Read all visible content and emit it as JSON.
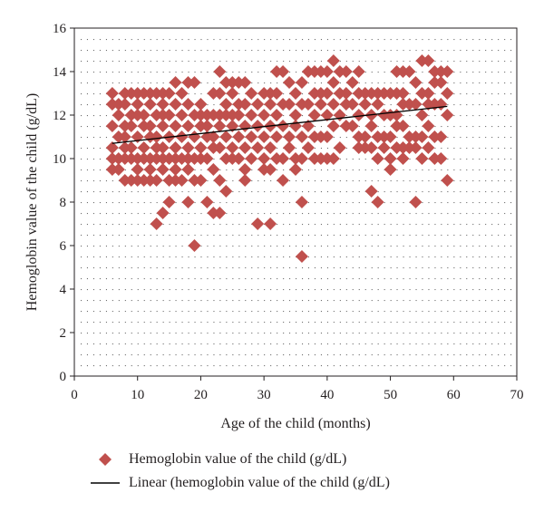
{
  "colors": {
    "marker": "#c0504d",
    "trend": "#000000",
    "grid_dots": "#6d6d6d",
    "axis": "#231f20"
  },
  "chart_data": {
    "type": "scatter",
    "title": "",
    "xlabel": "Age of the child (months)",
    "ylabel": "Hemoglobin value of the child (g/dL)",
    "xlim": [
      0,
      70
    ],
    "ylim": [
      0,
      16
    ],
    "xticks": [
      "0",
      "10",
      "20",
      "30",
      "40",
      "50",
      "60",
      "70"
    ],
    "yticks": [
      "0",
      "2",
      "4",
      "6",
      "8",
      "10",
      "12",
      "14",
      "16"
    ],
    "legend_position": "bottom",
    "series": [
      {
        "name": "Hemoglobin value of the child (g/dL)",
        "marker": "diamond",
        "points": [
          [
            6,
            13
          ],
          [
            6,
            12.5
          ],
          [
            6,
            11.5
          ],
          [
            6,
            10.5
          ],
          [
            6,
            10
          ],
          [
            6,
            9.5
          ],
          [
            7,
            12.5
          ],
          [
            7,
            12
          ],
          [
            7,
            11
          ],
          [
            7,
            10
          ],
          [
            7,
            9.5
          ],
          [
            8,
            13
          ],
          [
            8,
            12.5
          ],
          [
            8,
            11.5
          ],
          [
            8,
            11
          ],
          [
            8,
            10.5
          ],
          [
            8,
            10
          ],
          [
            8,
            9
          ],
          [
            9,
            13
          ],
          [
            9,
            12
          ],
          [
            9,
            11.5
          ],
          [
            9,
            10.5
          ],
          [
            9,
            10
          ],
          [
            9,
            9
          ],
          [
            10,
            13
          ],
          [
            10,
            12.5
          ],
          [
            10,
            12
          ],
          [
            10,
            11
          ],
          [
            10,
            10
          ],
          [
            10,
            9.5
          ],
          [
            10,
            9
          ],
          [
            11,
            13
          ],
          [
            11,
            12
          ],
          [
            11,
            11.5
          ],
          [
            11,
            10.5
          ],
          [
            11,
            10
          ],
          [
            11,
            9
          ],
          [
            12,
            13
          ],
          [
            12,
            12.5
          ],
          [
            12,
            11.5
          ],
          [
            12,
            11
          ],
          [
            12,
            10
          ],
          [
            12,
            9.5
          ],
          [
            12,
            9
          ],
          [
            13,
            13
          ],
          [
            13,
            12
          ],
          [
            13,
            11
          ],
          [
            13,
            10.5
          ],
          [
            13,
            10
          ],
          [
            13,
            9
          ],
          [
            13,
            7
          ],
          [
            14,
            13
          ],
          [
            14,
            12.5
          ],
          [
            14,
            12
          ],
          [
            14,
            11.5
          ],
          [
            14,
            10.5
          ],
          [
            14,
            10
          ],
          [
            14,
            9.5
          ],
          [
            14,
            7.5
          ],
          [
            15,
            13
          ],
          [
            15,
            12
          ],
          [
            15,
            11
          ],
          [
            15,
            10
          ],
          [
            15,
            9
          ],
          [
            15,
            8
          ],
          [
            16,
            13.5
          ],
          [
            16,
            12.5
          ],
          [
            16,
            11.5
          ],
          [
            16,
            10.5
          ],
          [
            16,
            10
          ],
          [
            16,
            9.5
          ],
          [
            16,
            9
          ],
          [
            17,
            13
          ],
          [
            17,
            12
          ],
          [
            17,
            11
          ],
          [
            17,
            10
          ],
          [
            17,
            9
          ],
          [
            18,
            13.5
          ],
          [
            18,
            12.5
          ],
          [
            18,
            11.5
          ],
          [
            18,
            10.5
          ],
          [
            18,
            10
          ],
          [
            18,
            9.5
          ],
          [
            18,
            8
          ],
          [
            19,
            13.5
          ],
          [
            19,
            12
          ],
          [
            19,
            11
          ],
          [
            19,
            10
          ],
          [
            19,
            9
          ],
          [
            19,
            6
          ],
          [
            20,
            12.5
          ],
          [
            20,
            12
          ],
          [
            20,
            11.5
          ],
          [
            20,
            10.5
          ],
          [
            20,
            10
          ],
          [
            20,
            9
          ],
          [
            21,
            12
          ],
          [
            21,
            11.5
          ],
          [
            21,
            11
          ],
          [
            21,
            10
          ],
          [
            21,
            8
          ],
          [
            22,
            13
          ],
          [
            22,
            12
          ],
          [
            22,
            11
          ],
          [
            22,
            10.5
          ],
          [
            22,
            9.5
          ],
          [
            22,
            7.5
          ],
          [
            23,
            14
          ],
          [
            23,
            13
          ],
          [
            23,
            12
          ],
          [
            23,
            11.5
          ],
          [
            23,
            10.5
          ],
          [
            23,
            9
          ],
          [
            23,
            7.5
          ],
          [
            24,
            13.5
          ],
          [
            24,
            12.5
          ],
          [
            24,
            12
          ],
          [
            24,
            11
          ],
          [
            24,
            10
          ],
          [
            24,
            8.5
          ],
          [
            25,
            13.5
          ],
          [
            25,
            13
          ],
          [
            25,
            12
          ],
          [
            25,
            11.5
          ],
          [
            25,
            10.5
          ],
          [
            25,
            10
          ],
          [
            26,
            13.5
          ],
          [
            26,
            12.5
          ],
          [
            26,
            12
          ],
          [
            26,
            11
          ],
          [
            26,
            10
          ],
          [
            27,
            13.5
          ],
          [
            27,
            12.5
          ],
          [
            27,
            11.5
          ],
          [
            27,
            10.5
          ],
          [
            27,
            9.5
          ],
          [
            27,
            9
          ],
          [
            28,
            13
          ],
          [
            28,
            12
          ],
          [
            28,
            11
          ],
          [
            28,
            10
          ],
          [
            29,
            12.5
          ],
          [
            29,
            11.5
          ],
          [
            29,
            10.5
          ],
          [
            29,
            7
          ],
          [
            30,
            13
          ],
          [
            30,
            12
          ],
          [
            30,
            11
          ],
          [
            30,
            10
          ],
          [
            30,
            9.5
          ],
          [
            31,
            13
          ],
          [
            31,
            12.5
          ],
          [
            31,
            11.5
          ],
          [
            31,
            10.5
          ],
          [
            31,
            9.5
          ],
          [
            31,
            7
          ],
          [
            32,
            14
          ],
          [
            32,
            13
          ],
          [
            32,
            12
          ],
          [
            32,
            11
          ],
          [
            32,
            10
          ],
          [
            33,
            14
          ],
          [
            33,
            12.5
          ],
          [
            33,
            11.5
          ],
          [
            33,
            10
          ],
          [
            33,
            9
          ],
          [
            34,
            13.5
          ],
          [
            34,
            12.5
          ],
          [
            34,
            11
          ],
          [
            34,
            10.5
          ],
          [
            35,
            13
          ],
          [
            35,
            12
          ],
          [
            35,
            11.5
          ],
          [
            35,
            10
          ],
          [
            35,
            9.5
          ],
          [
            36,
            13.5
          ],
          [
            36,
            12.5
          ],
          [
            36,
            11
          ],
          [
            36,
            10
          ],
          [
            36,
            8
          ],
          [
            36,
            5.5
          ],
          [
            37,
            14
          ],
          [
            37,
            12.5
          ],
          [
            37,
            11.5
          ],
          [
            37,
            10.5
          ],
          [
            38,
            14
          ],
          [
            38,
            13
          ],
          [
            38,
            12
          ],
          [
            38,
            11
          ],
          [
            38,
            10
          ],
          [
            39,
            14
          ],
          [
            39,
            13
          ],
          [
            39,
            12.5
          ],
          [
            39,
            11
          ],
          [
            39,
            10
          ],
          [
            40,
            14
          ],
          [
            40,
            13
          ],
          [
            40,
            12
          ],
          [
            40,
            11
          ],
          [
            40,
            10
          ],
          [
            41,
            14.5
          ],
          [
            41,
            13.5
          ],
          [
            41,
            12.5
          ],
          [
            41,
            11.5
          ],
          [
            41,
            10
          ],
          [
            42,
            14
          ],
          [
            42,
            13
          ],
          [
            42,
            12
          ],
          [
            42,
            10.5
          ],
          [
            43,
            14
          ],
          [
            43,
            13
          ],
          [
            43,
            12.5
          ],
          [
            43,
            11.5
          ],
          [
            44,
            13.5
          ],
          [
            44,
            12.5
          ],
          [
            44,
            11.5
          ],
          [
            45,
            14
          ],
          [
            45,
            13
          ],
          [
            45,
            12
          ],
          [
            45,
            11
          ],
          [
            45,
            10.5
          ],
          [
            46,
            13
          ],
          [
            46,
            12.5
          ],
          [
            46,
            11
          ],
          [
            46,
            10.5
          ],
          [
            47,
            13
          ],
          [
            47,
            12
          ],
          [
            47,
            11.5
          ],
          [
            47,
            10.5
          ],
          [
            47,
            8.5
          ],
          [
            48,
            13
          ],
          [
            48,
            12.5
          ],
          [
            48,
            11
          ],
          [
            48,
            10
          ],
          [
            48,
            8
          ],
          [
            49,
            13
          ],
          [
            49,
            12
          ],
          [
            49,
            11
          ],
          [
            49,
            10.5
          ],
          [
            50,
            13
          ],
          [
            50,
            12
          ],
          [
            50,
            11
          ],
          [
            50,
            10
          ],
          [
            50,
            9.5
          ],
          [
            51,
            14
          ],
          [
            51,
            13
          ],
          [
            51,
            12
          ],
          [
            51,
            11.5
          ],
          [
            51,
            10.5
          ],
          [
            52,
            14
          ],
          [
            52,
            13
          ],
          [
            52,
            12.5
          ],
          [
            52,
            11.5
          ],
          [
            52,
            10.5
          ],
          [
            52,
            10
          ],
          [
            53,
            14
          ],
          [
            53,
            12.5
          ],
          [
            53,
            11
          ],
          [
            53,
            10.5
          ],
          [
            54,
            13.5
          ],
          [
            54,
            12.5
          ],
          [
            54,
            11
          ],
          [
            54,
            10.5
          ],
          [
            54,
            8
          ],
          [
            55,
            14.5
          ],
          [
            55,
            13
          ],
          [
            55,
            12
          ],
          [
            55,
            11
          ],
          [
            55,
            10
          ],
          [
            56,
            14.5
          ],
          [
            56,
            13
          ],
          [
            56,
            12.5
          ],
          [
            56,
            11.5
          ],
          [
            56,
            10.5
          ],
          [
            57,
            14
          ],
          [
            57,
            13.5
          ],
          [
            57,
            12.5
          ],
          [
            57,
            11
          ],
          [
            57,
            10
          ],
          [
            58,
            14
          ],
          [
            58,
            13.5
          ],
          [
            58,
            12.5
          ],
          [
            58,
            11
          ],
          [
            58,
            10
          ],
          [
            59,
            14
          ],
          [
            59,
            13
          ],
          [
            59,
            12
          ],
          [
            59,
            9
          ]
        ]
      },
      {
        "name": "Linear (hemoglobin value of the child (g/dL)",
        "type": "line",
        "x": [
          6,
          59
        ],
        "y": [
          10.7,
          12.4
        ]
      }
    ]
  }
}
